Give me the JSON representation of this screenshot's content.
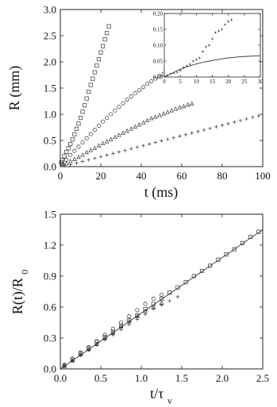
{
  "chart_data": [
    {
      "type": "scatter",
      "xlabel": "t (ms)",
      "ylabel": "R (mm)",
      "xlim": [
        0,
        100
      ],
      "ylim": [
        0,
        3.0
      ],
      "x_ticks": [
        "0",
        "20",
        "40",
        "60",
        "80",
        "100"
      ],
      "y_ticks": [
        "0.0",
        "0.5",
        "1.0",
        "1.5",
        "2.0",
        "2.5",
        "3.0"
      ],
      "grid": false,
      "series": [
        {
          "marker": "square",
          "x": [
            0.5,
            1,
            2,
            3,
            4,
            5,
            6,
            7,
            8,
            9,
            10,
            11,
            12,
            13,
            14,
            15,
            16,
            17,
            18,
            19,
            20,
            21,
            22,
            23,
            24
          ],
          "y": [
            0.08,
            0.12,
            0.2,
            0.28,
            0.35,
            0.43,
            0.52,
            0.62,
            0.72,
            0.82,
            0.93,
            1.05,
            1.17,
            1.3,
            1.43,
            1.56,
            1.68,
            1.8,
            1.93,
            2.05,
            2.18,
            2.3,
            2.43,
            2.55,
            2.68
          ]
        },
        {
          "marker": "circle",
          "x": [
            1,
            3,
            5,
            7,
            9,
            11,
            13,
            15,
            17,
            19,
            21,
            23,
            25,
            27,
            29,
            31,
            33,
            35,
            37,
            39,
            41,
            43,
            45,
            47,
            49,
            51,
            53,
            55,
            57,
            59,
            61
          ],
          "y": [
            0.05,
            0.13,
            0.22,
            0.3,
            0.38,
            0.46,
            0.54,
            0.62,
            0.7,
            0.78,
            0.86,
            0.93,
            1.0,
            1.07,
            1.14,
            1.21,
            1.28,
            1.34,
            1.4,
            1.46,
            1.52,
            1.58,
            1.63,
            1.68,
            1.73,
            1.77,
            1.81,
            1.85,
            1.88,
            1.91,
            1.94
          ]
        },
        {
          "marker": "triangle",
          "x": [
            1,
            3,
            5,
            7,
            9,
            11,
            13,
            15,
            17,
            19,
            21,
            23,
            25,
            27,
            29,
            31,
            33,
            35,
            37,
            39,
            41,
            43,
            45,
            47,
            49,
            51,
            53,
            55,
            57,
            59,
            61,
            63,
            65
          ],
          "y": [
            0.03,
            0.06,
            0.1,
            0.14,
            0.18,
            0.22,
            0.27,
            0.31,
            0.35,
            0.4,
            0.44,
            0.48,
            0.52,
            0.56,
            0.6,
            0.64,
            0.68,
            0.72,
            0.76,
            0.8,
            0.84,
            0.88,
            0.92,
            0.95,
            0.98,
            1.01,
            1.04,
            1.07,
            1.1,
            1.13,
            1.15,
            1.18,
            1.2
          ]
        },
        {
          "marker": "plus",
          "x": [
            2,
            5,
            8,
            11,
            14,
            17,
            20,
            23,
            26,
            29,
            32,
            35,
            38,
            41,
            44,
            47,
            50,
            53,
            56,
            59,
            62,
            65,
            68,
            71,
            74,
            77,
            80,
            83,
            86,
            89,
            92,
            95,
            98
          ],
          "y": [
            0.02,
            0.04,
            0.07,
            0.1,
            0.13,
            0.16,
            0.19,
            0.22,
            0.25,
            0.28,
            0.31,
            0.34,
            0.37,
            0.4,
            0.43,
            0.46,
            0.49,
            0.52,
            0.55,
            0.58,
            0.61,
            0.64,
            0.67,
            0.7,
            0.73,
            0.76,
            0.79,
            0.82,
            0.85,
            0.88,
            0.91,
            0.94,
            0.97
          ]
        }
      ]
    },
    {
      "type": "scatter",
      "inset": true,
      "xlim": [
        0,
        30
      ],
      "ylim": [
        0,
        0.2
      ],
      "x_ticks": [
        "0",
        "5",
        "10",
        "15",
        "20",
        "25",
        "30"
      ],
      "y_ticks": [
        "0.00",
        "0.05",
        "0.10",
        "0.15",
        "0.20"
      ],
      "series": [
        {
          "marker": "plus",
          "x": [
            1,
            2,
            3,
            4,
            5,
            6,
            7,
            8,
            9,
            10,
            11,
            12,
            13,
            14,
            15,
            16,
            17,
            18,
            19,
            20,
            21
          ],
          "y": [
            0.005,
            0.01,
            0.012,
            0.015,
            0.02,
            0.03,
            0.035,
            0.04,
            0.05,
            0.055,
            0.06,
            0.08,
            0.095,
            0.1,
            0.12,
            0.14,
            0.145,
            0.15,
            0.165,
            0.175,
            0.18
          ]
        },
        {
          "type": "line",
          "x": [
            0,
            2,
            4,
            6,
            8,
            10,
            12,
            14,
            16,
            18,
            20,
            22,
            24,
            26,
            28,
            30
          ],
          "y": [
            0.0,
            0.01,
            0.02,
            0.028,
            0.035,
            0.041,
            0.046,
            0.05,
            0.054,
            0.057,
            0.06,
            0.062,
            0.064,
            0.065,
            0.066,
            0.067
          ]
        }
      ]
    },
    {
      "type": "scatter",
      "xlabel": "t/τv",
      "ylabel": "R(t)/R0",
      "xlim": [
        0,
        2.5
      ],
      "ylim": [
        0,
        1.5
      ],
      "x_ticks": [
        "0.0",
        "0.5",
        "1.0",
        "1.5",
        "2.0",
        "2.5"
      ],
      "y_ticks": [
        "0.0",
        "0.3",
        "0.6",
        "0.9",
        "1.2",
        "1.5"
      ],
      "series": [
        {
          "marker": "square",
          "x": [
            0.05,
            0.15,
            0.25,
            0.35,
            0.45,
            0.55,
            0.65,
            0.75,
            0.85,
            0.95,
            1.05,
            1.15,
            1.25,
            1.35,
            1.45,
            1.55,
            1.65,
            1.75,
            1.85,
            1.95,
            2.05,
            2.15,
            2.25,
            2.35,
            2.45
          ],
          "y": [
            0.03,
            0.09,
            0.15,
            0.2,
            0.26,
            0.31,
            0.36,
            0.42,
            0.47,
            0.52,
            0.58,
            0.63,
            0.68,
            0.74,
            0.79,
            0.84,
            0.9,
            0.95,
            1.0,
            1.06,
            1.11,
            1.16,
            1.22,
            1.28,
            1.33
          ]
        },
        {
          "marker": "circle",
          "x": [
            0.05,
            0.15,
            0.25,
            0.35,
            0.45,
            0.55,
            0.65,
            0.75,
            0.85,
            0.95,
            1.05,
            1.15,
            1.25
          ],
          "y": [
            0.04,
            0.1,
            0.16,
            0.21,
            0.27,
            0.33,
            0.39,
            0.45,
            0.51,
            0.57,
            0.63,
            0.68,
            0.72
          ]
        },
        {
          "marker": "triangle",
          "x": [
            0.05,
            0.15,
            0.25,
            0.35,
            0.45,
            0.55,
            0.65,
            0.75,
            0.85,
            0.95,
            1.05,
            1.15,
            1.25
          ],
          "y": [
            0.03,
            0.08,
            0.14,
            0.19,
            0.24,
            0.3,
            0.35,
            0.41,
            0.46,
            0.51,
            0.56,
            0.6,
            0.64
          ]
        },
        {
          "marker": "plus",
          "x": [
            0.05,
            0.15,
            0.25,
            0.35,
            0.45,
            0.55,
            0.65,
            0.75,
            0.85,
            0.95,
            1.05,
            1.15,
            1.25,
            1.35,
            1.45
          ],
          "y": [
            0.03,
            0.08,
            0.13,
            0.18,
            0.23,
            0.28,
            0.33,
            0.38,
            0.43,
            0.48,
            0.53,
            0.58,
            0.62,
            0.66,
            0.7
          ]
        },
        {
          "type": "line",
          "x": [
            0,
            2.5
          ],
          "y": [
            0,
            1.35
          ]
        }
      ]
    }
  ]
}
